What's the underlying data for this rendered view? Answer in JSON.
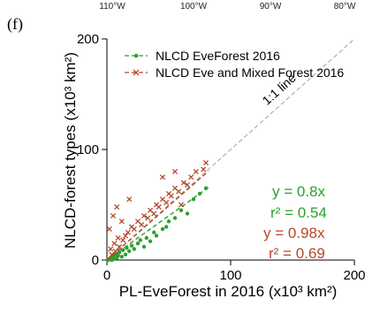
{
  "panel_label": "(f)",
  "top_axis": {
    "labels": [
      "110°W",
      "100°W",
      "90°W",
      "80°W"
    ]
  },
  "colors": {
    "green": "#2ca02c",
    "red": "#b5472a",
    "identity": "#aaaaaa"
  },
  "legend": [
    {
      "label": "NLCD EveForest 2016",
      "color": "#2ca02c",
      "marker": "dot"
    },
    {
      "label": "NLCD Eve and Mixed Forest 2016",
      "color": "#b5472a",
      "marker": "x"
    }
  ],
  "identity_line_label": "1:1 line",
  "stats": {
    "green_slope": "y = 0.8x",
    "green_r2": "r² = 0.54",
    "red_slope": "y = 0.98x",
    "red_r2": "r² = 0.69"
  },
  "chart_data": {
    "type": "scatter",
    "xlabel": "PL-EveForest in 2016 (x10³ km²)",
    "ylabel": "NLCD-forest types (x10³ km²)",
    "xlim": [
      0,
      200
    ],
    "ylim": [
      0,
      200
    ],
    "xticks": [
      0,
      100,
      200
    ],
    "yticks": [
      0,
      100,
      200
    ],
    "grid": false,
    "legend_position": "top-left",
    "series": [
      {
        "name": "NLCD EveForest 2016",
        "marker": "dot",
        "color": "#2ca02c",
        "points": [
          [
            1,
            0
          ],
          [
            2,
            1
          ],
          [
            3,
            2
          ],
          [
            4,
            0
          ],
          [
            5,
            3
          ],
          [
            6,
            1
          ],
          [
            7,
            5
          ],
          [
            8,
            2
          ],
          [
            9,
            4
          ],
          [
            10,
            7
          ],
          [
            12,
            3
          ],
          [
            13,
            9
          ],
          [
            15,
            5
          ],
          [
            16,
            11
          ],
          [
            18,
            8
          ],
          [
            20,
            13
          ],
          [
            22,
            10
          ],
          [
            25,
            15
          ],
          [
            27,
            18
          ],
          [
            30,
            12
          ],
          [
            32,
            20
          ],
          [
            35,
            17
          ],
          [
            38,
            25
          ],
          [
            40,
            22
          ],
          [
            45,
            28
          ],
          [
            48,
            30
          ],
          [
            50,
            35
          ],
          [
            55,
            38
          ],
          [
            60,
            45
          ],
          [
            65,
            42
          ],
          [
            70,
            55
          ],
          [
            75,
            60
          ],
          [
            80,
            65
          ]
        ],
        "fit": {
          "slope": 0.8,
          "r2": 0.54,
          "x_range": [
            0,
            82
          ]
        }
      },
      {
        "name": "NLCD Eve and Mixed Forest 2016",
        "marker": "x",
        "color": "#b5472a",
        "points": [
          [
            2,
            28
          ],
          [
            3,
            10
          ],
          [
            4,
            5
          ],
          [
            5,
            40
          ],
          [
            6,
            15
          ],
          [
            7,
            8
          ],
          [
            8,
            48
          ],
          [
            9,
            20
          ],
          [
            10,
            12
          ],
          [
            12,
            35
          ],
          [
            13,
            18
          ],
          [
            15,
            22
          ],
          [
            17,
            25
          ],
          [
            18,
            55
          ],
          [
            20,
            30
          ],
          [
            22,
            28
          ],
          [
            25,
            35
          ],
          [
            28,
            32
          ],
          [
            30,
            40
          ],
          [
            33,
            38
          ],
          [
            35,
            45
          ],
          [
            38,
            42
          ],
          [
            40,
            50
          ],
          [
            42,
            48
          ],
          [
            45,
            55
          ],
          [
            48,
            52
          ],
          [
            50,
            60
          ],
          [
            52,
            58
          ],
          [
            55,
            65
          ],
          [
            58,
            62
          ],
          [
            62,
            70
          ],
          [
            65,
            68
          ],
          [
            68,
            75
          ],
          [
            72,
            80
          ],
          [
            78,
            82
          ],
          [
            80,
            88
          ],
          [
            45,
            75
          ],
          [
            55,
            80
          ],
          [
            60,
            50
          ]
        ],
        "fit": {
          "slope": 0.98,
          "r2": 0.69,
          "x_range": [
            0,
            82
          ]
        }
      },
      {
        "name": "1:1 line",
        "type": "line",
        "color": "#aaaaaa",
        "x": [
          0,
          200
        ],
        "y": [
          0,
          200
        ]
      }
    ]
  }
}
